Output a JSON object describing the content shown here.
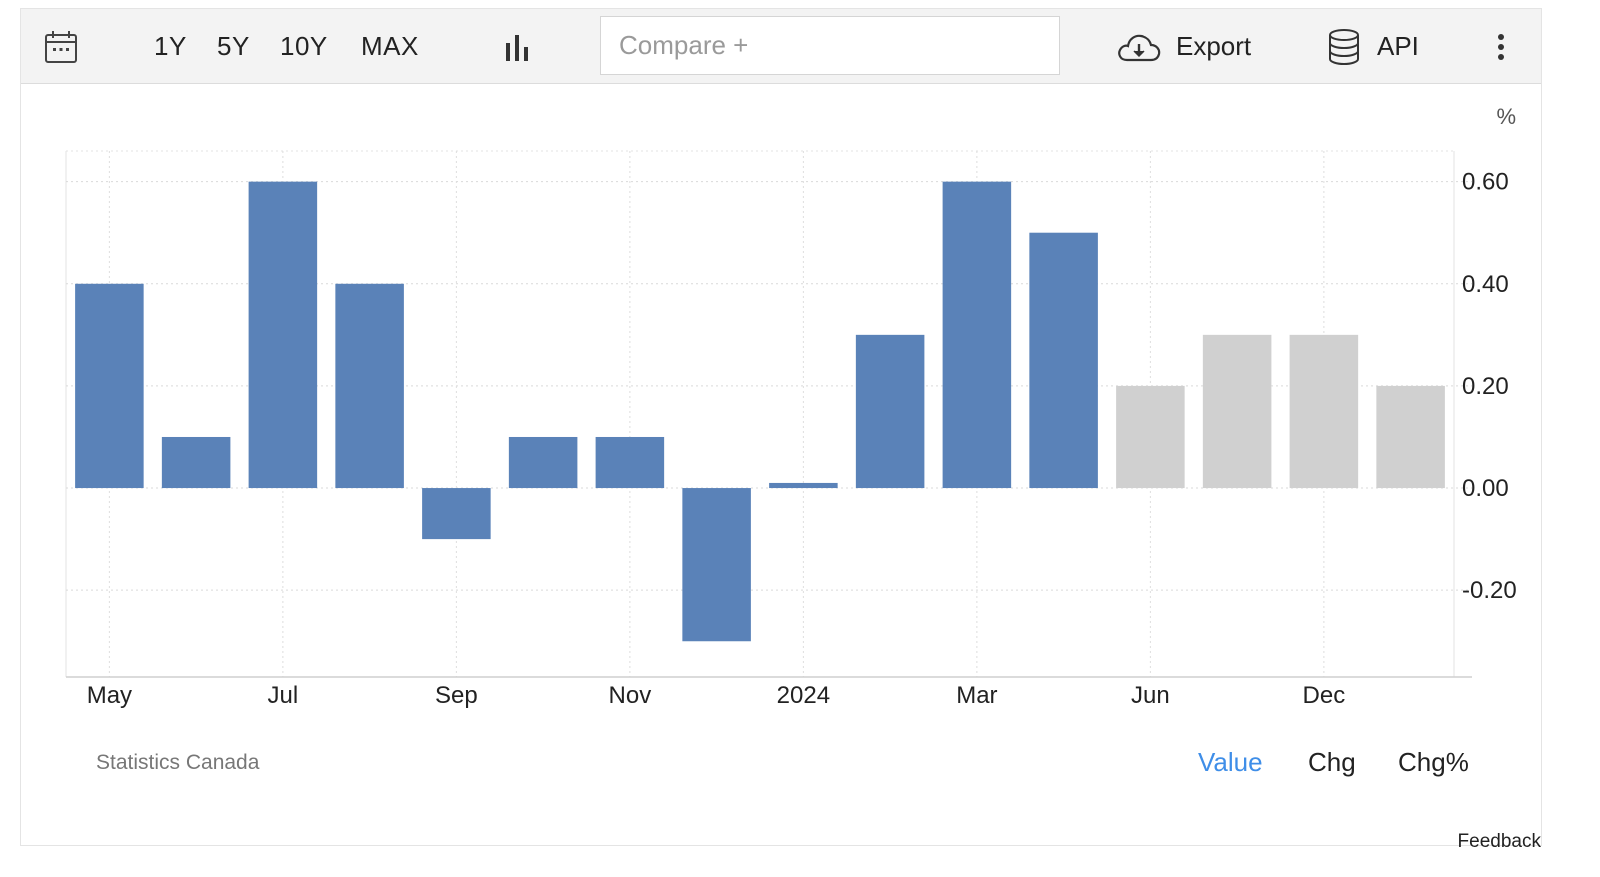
{
  "toolbar": {
    "icons": {
      "calendar": "calendar-icon",
      "chart_type": "bar-chart-icon",
      "export": "cloud-download-icon",
      "api": "database-icon",
      "more": "vertical-dots-icon"
    },
    "ranges": [
      "1Y",
      "5Y",
      "10Y",
      "MAX"
    ],
    "compare_placeholder": "Compare +",
    "export_label": "Export",
    "api_label": "API"
  },
  "footer": {
    "source": "Statistics Canada",
    "modes": [
      "Value",
      "Chg",
      "Chg%"
    ],
    "active_mode": "Value",
    "feedback": "Feedback"
  },
  "colors": {
    "actual": "#5a82b8",
    "forecast": "#d0d0d0",
    "active_mode": "#3f8ee8"
  },
  "chart_data": {
    "type": "bar",
    "unit": "%",
    "ylim": [
      -0.37,
      0.66
    ],
    "yticks": [
      -0.2,
      0.0,
      0.2,
      0.4,
      0.6
    ],
    "ytick_labels": [
      "-0.20",
      "0.00",
      "0.20",
      "0.40",
      "0.60"
    ],
    "grid": true,
    "x_tick_labels": [
      {
        "label": "May",
        "bar_index": 0
      },
      {
        "label": "Jul",
        "bar_index": 2
      },
      {
        "label": "Sep",
        "bar_index": 4
      },
      {
        "label": "Nov",
        "bar_index": 6
      },
      {
        "label": "2024",
        "bar_index": 8
      },
      {
        "label": "Mar",
        "bar_index": 10
      },
      {
        "label": "Jun",
        "bar_index": 12
      },
      {
        "label": "Dec",
        "bar_index": 14
      }
    ],
    "series": [
      {
        "values": [
          0.4,
          0.1,
          0.6,
          0.4,
          -0.1,
          0.1,
          0.1,
          -0.3,
          0.01,
          0.3,
          0.6,
          0.5,
          null,
          null,
          null,
          null
        ]
      },
      {
        "values": [
          null,
          null,
          null,
          null,
          null,
          null,
          null,
          null,
          null,
          null,
          null,
          null,
          0.2,
          0.3,
          0.3,
          0.2
        ]
      }
    ]
  }
}
